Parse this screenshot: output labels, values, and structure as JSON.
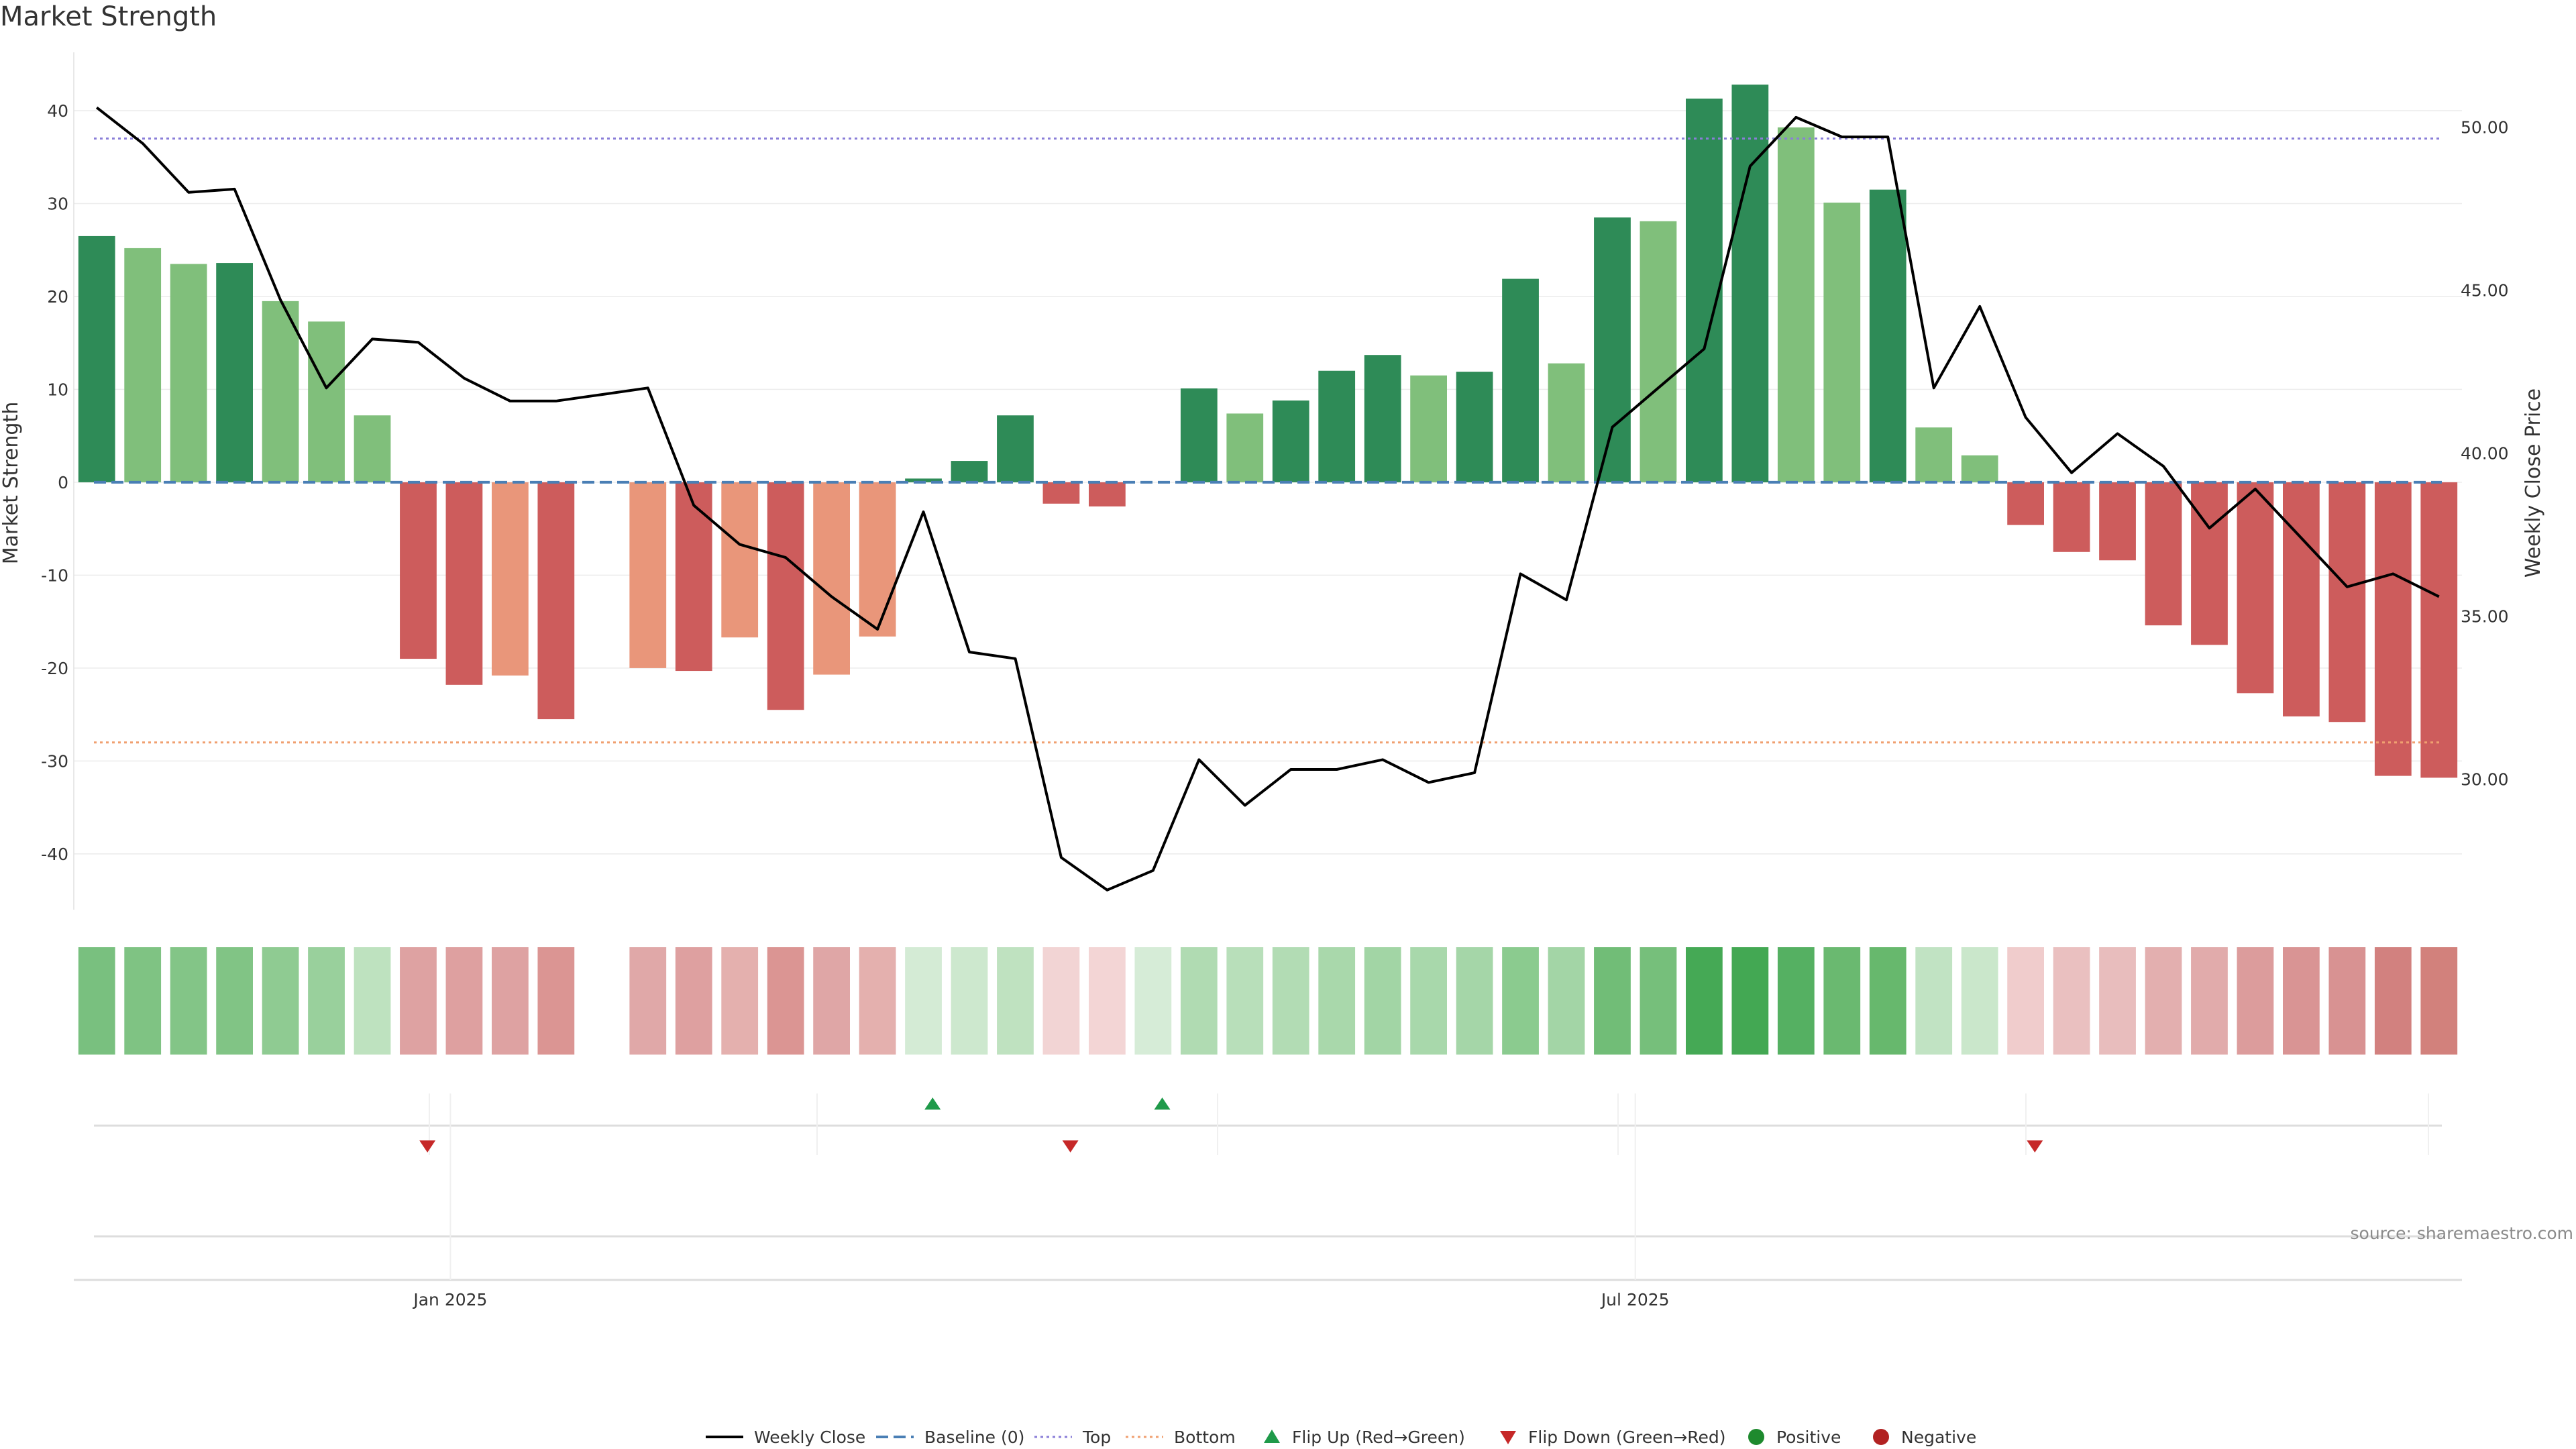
{
  "chart_data": {
    "type": "bar",
    "title": "Market Strength",
    "ylabel_left": "Market Strength",
    "ylabel_right": "Weekly Close Price",
    "ylim_left": [
      -46,
      47
    ],
    "ylim_right": [
      26.0,
      52.5
    ],
    "yticks_left": [
      "40",
      "30",
      "20",
      "10",
      "0",
      "-10",
      "-20",
      "-30",
      "-40"
    ],
    "yticks_right": [
      "50.00",
      "45.00",
      "40.00",
      "35.00",
      "30.00"
    ],
    "x_ticks": [
      {
        "label": "Jan 2025",
        "index": 7.7
      },
      {
        "label": "Jul 2025",
        "index": 33.5
      }
    ],
    "reference_lines": {
      "baseline": 0,
      "top": 37,
      "bottom": -28
    },
    "strength": [
      26.5,
      25.2,
      23.5,
      23.6,
      19.5,
      17.3,
      7.2,
      -19,
      -21.8,
      -20.8,
      -25.5,
      null,
      -20,
      -20.3,
      -16.7,
      -24.5,
      -20.7,
      -16.6,
      0.4,
      2.3,
      7.2,
      -2.3,
      -2.6,
      null,
      10.1,
      7.4,
      8.8,
      12,
      13.7,
      11.5,
      11.9,
      21.9,
      12.8,
      28.5,
      28.1,
      41.3,
      42.8,
      38.2,
      30.1,
      31.5,
      5.9,
      2.9,
      -4.6,
      -7.5,
      -8.4,
      -15.4,
      -17.5,
      -22.7,
      -25.2,
      -25.8,
      -31.6,
      -31.8
    ],
    "shade": [
      "dark",
      "light",
      "light",
      "dark",
      "light",
      "light",
      "light",
      "dark",
      "dark",
      "light",
      "dark",
      null,
      "light",
      "dark",
      "light",
      "dark",
      "light",
      "light",
      "dark",
      "dark",
      "dark",
      "dark",
      "dark",
      null,
      "dark",
      "light",
      "dark",
      "dark",
      "dark",
      "light",
      "dark",
      "dark",
      "light",
      "dark",
      "light",
      "dark",
      "dark",
      "light",
      "light",
      "dark",
      "light",
      "light",
      "dark",
      "dark",
      "dark",
      "dark",
      "dark",
      "dark",
      "dark",
      "dark",
      "dark",
      "dark"
    ],
    "weekly_close": [
      50.6,
      49.5,
      48.0,
      48.1,
      44.7,
      42.0,
      43.5,
      43.4,
      42.3,
      41.6,
      41.6,
      41.8,
      42.0,
      38.4,
      37.2,
      36.8,
      35.6,
      34.6,
      38.2,
      33.9,
      33.7,
      27.6,
      26.6,
      27.2,
      30.6,
      29.2,
      30.3,
      30.3,
      30.6,
      29.9,
      30.2,
      36.3,
      35.5,
      40.8,
      42.0,
      43.2,
      48.8,
      50.3,
      49.7,
      49.7,
      42.0,
      44.5,
      41.1,
      39.4,
      40.6,
      39.6,
      37.7,
      38.9,
      37.4,
      35.9,
      36.3,
      35.6
    ],
    "heat_strip": [
      "#79c07f",
      "#7fc383",
      "#83c587",
      "#81c485",
      "#8fcb92",
      "#99d09c",
      "#bee2bf",
      "#dea2a2",
      "#dea0a0",
      "#dea2a2",
      "#db9593",
      null,
      "#e0a8a8",
      "#dea0a0",
      "#e4b0ae",
      "#db9593",
      "#dfa6a6",
      "#e4b0ae",
      "#d4ebd5",
      "#cde8ce",
      "#bfe2c0",
      "#f2d4d4",
      "#f3d5d5",
      "#d6ecd7",
      "#b0dbb2",
      "#b8dfba",
      "#b2dcb4",
      "#a9d8ab",
      "#a2d5a5",
      "#a8d8ab",
      "#a5d6a8",
      "#8bcb8f",
      "#a3d5a6",
      "#71bd77",
      "#76bf7b",
      "#45a955",
      "#43a853",
      "#55b062",
      "#6ab970",
      "#67b86d",
      "#c1e3c3",
      "#cae7cb",
      "#f0cccc",
      "#eac0c0",
      "#e8bdbd",
      "#e3afaf",
      "#e1abab",
      "#dc9c9c",
      "#d99494",
      "#d89292",
      "#d2817f",
      "#d2817c"
    ],
    "flip_up": [
      18.2,
      23.2
    ],
    "flip_down": [
      7.2,
      21.2,
      42.2
    ],
    "legend": [
      "Weekly Close",
      "Baseline (0)",
      "Top",
      "Bottom",
      "Flip Up (Red→Green)",
      "Flip Down (Green→Red)",
      "Positive",
      "Negative"
    ],
    "source": "source: sharemaestro.com"
  },
  "colors": {
    "pos_dark": "#2e8b57",
    "pos_light": "#80bf7b",
    "neg_dark": "#cd5c5c",
    "neg_light": "#e9967a",
    "line": "#000000",
    "baseline": "#4a7fb5",
    "top": "#8a7ed8",
    "bottom": "#f0a070",
    "flip_up": "#1f9a4a",
    "flip_down": "#c62828",
    "positive_dot": "#1e8a2e",
    "negative_dot": "#b22222"
  }
}
